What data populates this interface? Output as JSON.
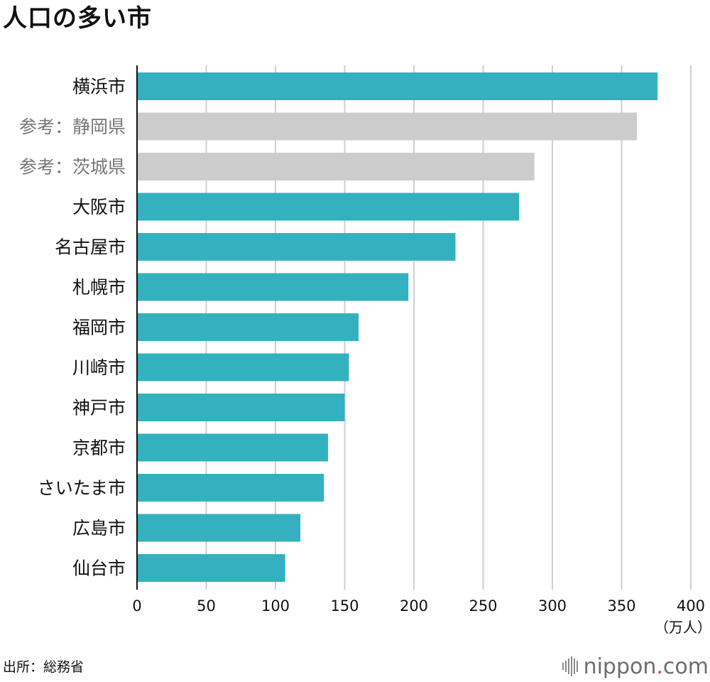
{
  "title": "人口の多い市",
  "source": "出所：総務省",
  "logo": {
    "name": "nippon",
    "dot": ".",
    "tld": "com"
  },
  "colors": {
    "city": "#34b1be",
    "reference": "#cccccc",
    "grid": "#cfcfcf",
    "axis": "#111111",
    "reference_label": "#777777"
  },
  "chart_data": {
    "type": "bar",
    "orientation": "horizontal",
    "categories": [
      "横浜市",
      "参考：静岡県",
      "参考：茨城県",
      "大阪市",
      "名古屋市",
      "札幌市",
      "福岡市",
      "川崎市",
      "神戸市",
      "京都市",
      "さいたま市",
      "広島市",
      "仙台市"
    ],
    "values": [
      376,
      361,
      287,
      276,
      230,
      196,
      160,
      153,
      150,
      138,
      135,
      118,
      107
    ],
    "kinds": [
      "city",
      "reference",
      "reference",
      "city",
      "city",
      "city",
      "city",
      "city",
      "city",
      "city",
      "city",
      "city",
      "city"
    ],
    "xlim": [
      0,
      400
    ],
    "xticks": [
      0,
      50,
      100,
      150,
      200,
      250,
      300,
      350,
      400
    ],
    "unit": "（万人）",
    "grid": true
  }
}
